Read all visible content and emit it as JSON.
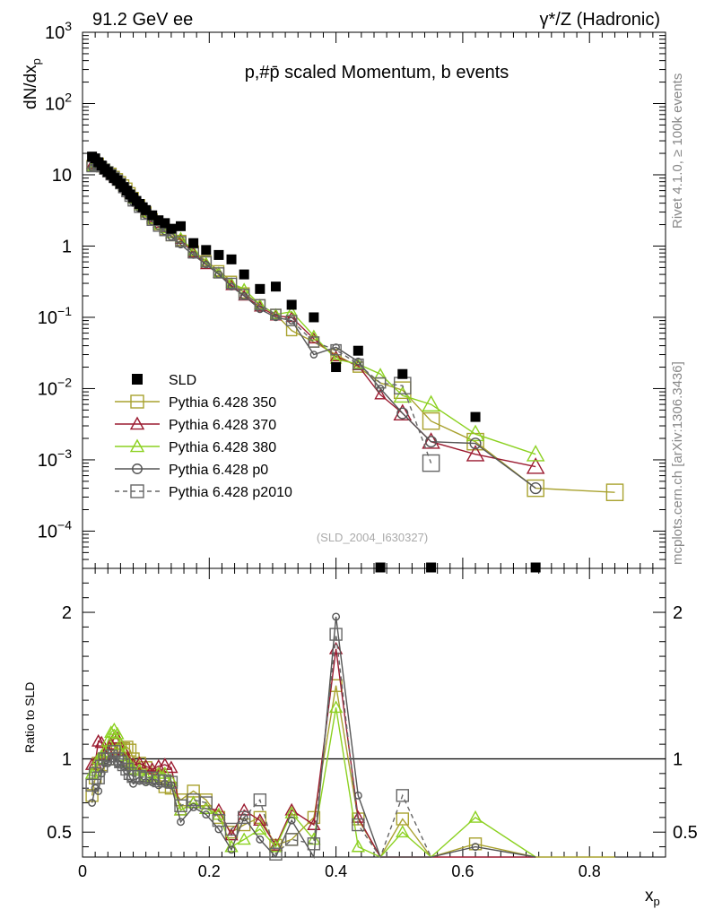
{
  "header": {
    "left": "91.2 GeV ee",
    "right": "γ*/Z (Hadronic)"
  },
  "side_text": {
    "rivet": "Rivet 4.1.0, ≥ 100k events",
    "source": "mcplots.cern.ch [arXiv:1306.3436]"
  },
  "chart_data": {
    "type": "scatter",
    "title": "p,#p̄ scaled Momentum, b events",
    "watermark": "(SLD_2004_I630327)",
    "xlabel": "x_p",
    "ylabel": "dN/dx_p",
    "ratio_ylabel": "Ratio to SLD",
    "xlim": [
      0,
      0.92
    ],
    "ylim_log": [
      3e-05,
      1000
    ],
    "ratio_ylim": [
      0.33,
      2.3
    ],
    "x_ticks": [
      "0",
      "0.2",
      "0.4",
      "0.6",
      "0.8"
    ],
    "ratio_ticks": [
      "0.5",
      "1",
      "2"
    ],
    "y_tick_labels": [
      "10^{-4}",
      "10^{-3}",
      "10^{-2}",
      "10^{-1}",
      "1",
      "10",
      "10^{2}",
      "10^{3}"
    ],
    "legend": [
      "SLD",
      "Pythia 6.428 350",
      "Pythia 6.428 370",
      "Pythia 6.428 380",
      "Pythia 6.428 p0",
      "Pythia 6.428 p2010"
    ],
    "data": {
      "name": "SLD",
      "color": "#000000",
      "x": [
        0.015,
        0.02,
        0.025,
        0.03,
        0.035,
        0.04,
        0.045,
        0.05,
        0.055,
        0.06,
        0.065,
        0.07,
        0.075,
        0.08,
        0.085,
        0.09,
        0.095,
        0.1,
        0.11,
        0.12,
        0.13,
        0.14,
        0.155,
        0.175,
        0.195,
        0.215,
        0.235,
        0.255,
        0.28,
        0.305,
        0.33,
        0.365,
        0.4,
        0.435,
        0.47,
        0.505,
        0.55,
        0.62,
        0.715
      ],
      "y": [
        18.0,
        17.0,
        15.0,
        13.5,
        12.0,
        11.0,
        10.0,
        9.0,
        8.3,
        7.5,
        6.7,
        6.0,
        5.3,
        4.8,
        4.3,
        3.9,
        3.5,
        3.2,
        2.7,
        2.3,
        2.1,
        1.75,
        1.9,
        1.1,
        0.88,
        0.75,
        0.65,
        0.4,
        0.25,
        0.27,
        0.15,
        0.1,
        0.02,
        0.034,
        0.0,
        0.016,
        0.0,
        0.004,
        0.0
      ]
    },
    "series": [
      {
        "name": "Pythia 6.428 350",
        "color": "#a9a22f",
        "marker": "square",
        "x": [
          0.015,
          0.02,
          0.025,
          0.03,
          0.035,
          0.04,
          0.045,
          0.05,
          0.055,
          0.06,
          0.065,
          0.07,
          0.075,
          0.08,
          0.09,
          0.1,
          0.11,
          0.12,
          0.13,
          0.14,
          0.155,
          0.175,
          0.195,
          0.215,
          0.235,
          0.255,
          0.28,
          0.305,
          0.33,
          0.365,
          0.4,
          0.435,
          0.47,
          0.505,
          0.55,
          0.62,
          0.715,
          0.84
        ],
        "y": [
          13.5,
          14.8,
          14.5,
          13.0,
          12.0,
          11.0,
          10.5,
          9.5,
          8.8,
          8.0,
          7.2,
          6.5,
          5.6,
          4.8,
          3.8,
          3.0,
          2.4,
          2.0,
          1.7,
          1.4,
          1.2,
          0.85,
          0.62,
          0.45,
          0.32,
          0.22,
          0.15,
          0.11,
          0.065,
          0.045,
          0.03,
          0.02,
          0.012,
          0.0095,
          0.0035,
          0.0018,
          0.0004,
          0.00035
        ],
        "ratio": [
          0.75,
          0.87,
          0.97,
          0.96,
          1.0,
          1.0,
          1.05,
          1.06,
          1.06,
          1.07,
          1.07,
          1.08,
          1.06,
          1.0,
          0.97,
          0.94,
          0.89,
          0.87,
          0.81,
          0.8,
          0.72,
          0.78,
          0.72,
          0.6,
          0.5,
          0.55,
          0.6,
          0.41,
          0.45,
          0.6,
          1.5,
          0.59,
          0.0,
          0.59,
          0.0,
          0.42,
          0.0,
          0.0
        ]
      },
      {
        "name": "Pythia 6.428 370",
        "color": "#9b1b30",
        "marker": "triangle",
        "x": [
          0.015,
          0.02,
          0.025,
          0.03,
          0.035,
          0.04,
          0.045,
          0.05,
          0.055,
          0.06,
          0.065,
          0.07,
          0.075,
          0.08,
          0.09,
          0.1,
          0.11,
          0.12,
          0.13,
          0.14,
          0.155,
          0.175,
          0.195,
          0.215,
          0.235,
          0.255,
          0.28,
          0.305,
          0.33,
          0.365,
          0.4,
          0.435,
          0.47,
          0.505,
          0.55,
          0.62,
          0.715
        ],
        "y": [
          14.0,
          15.5,
          15.0,
          13.5,
          12.5,
          11.5,
          10.5,
          9.5,
          8.8,
          8.0,
          7.0,
          6.2,
          5.5,
          4.8,
          3.9,
          3.1,
          2.5,
          2.1,
          1.8,
          1.5,
          1.25,
          0.8,
          0.55,
          0.42,
          0.28,
          0.2,
          0.14,
          0.105,
          0.1,
          0.05,
          0.028,
          0.021,
          0.0082,
          0.0045,
          0.0018,
          0.0012,
          0.0008
        ],
        "ratio": [
          0.96,
          0.97,
          1.12,
          1.11,
          1.03,
          1.05,
          1.1,
          1.14,
          1.14,
          1.1,
          1.06,
          1.0,
          0.97,
          0.96,
          0.97,
          0.95,
          0.93,
          0.95,
          0.96,
          0.94,
          0.65,
          0.7,
          0.66,
          0.65,
          0.48,
          0.65,
          0.58,
          0.41,
          0.65,
          0.55,
          1.75,
          0.6,
          0.0,
          0.0,
          0.0,
          0.0,
          0.0
        ]
      },
      {
        "name": "Pythia 6.428 380",
        "color": "#8cd121",
        "marker": "triangle",
        "x": [
          0.015,
          0.02,
          0.025,
          0.03,
          0.035,
          0.04,
          0.045,
          0.05,
          0.055,
          0.06,
          0.065,
          0.07,
          0.075,
          0.08,
          0.09,
          0.1,
          0.11,
          0.12,
          0.13,
          0.14,
          0.155,
          0.175,
          0.195,
          0.215,
          0.235,
          0.255,
          0.28,
          0.305,
          0.33,
          0.365,
          0.4,
          0.435,
          0.47,
          0.505,
          0.55,
          0.62,
          0.715
        ],
        "y": [
          13.0,
          14.5,
          15.0,
          14.0,
          13.0,
          12.0,
          11.0,
          10.0,
          9.0,
          8.0,
          7.0,
          6.0,
          5.3,
          4.6,
          3.7,
          3.0,
          2.4,
          2.0,
          1.75,
          1.5,
          1.3,
          0.85,
          0.58,
          0.42,
          0.3,
          0.25,
          0.15,
          0.11,
          0.12,
          0.055,
          0.026,
          0.022,
          0.016,
          0.008,
          0.006,
          0.0023,
          0.0012
        ],
        "ratio": [
          0.9,
          0.92,
          1.0,
          1.02,
          1.05,
          1.12,
          1.18,
          1.2,
          1.17,
          1.1,
          1.02,
          0.98,
          0.96,
          0.93,
          0.92,
          0.88,
          0.86,
          0.9,
          0.9,
          0.85,
          0.65,
          0.7,
          0.66,
          0.62,
          0.4,
          0.45,
          0.52,
          0.4,
          0.63,
          0.45,
          1.35,
          0.4,
          0.0,
          0.5,
          0.0,
          0.6,
          0.0
        ]
      },
      {
        "name": "Pythia 6.428 p0",
        "color": "#555555",
        "marker": "circle",
        "x": [
          0.015,
          0.02,
          0.025,
          0.03,
          0.035,
          0.04,
          0.045,
          0.05,
          0.055,
          0.06,
          0.065,
          0.07,
          0.075,
          0.08,
          0.09,
          0.1,
          0.11,
          0.12,
          0.13,
          0.14,
          0.155,
          0.175,
          0.195,
          0.215,
          0.235,
          0.255,
          0.28,
          0.305,
          0.33,
          0.365,
          0.4,
          0.435,
          0.47,
          0.505,
          0.55,
          0.62,
          0.715
        ],
        "y": [
          12.5,
          13.5,
          13.0,
          12.5,
          11.5,
          10.5,
          9.5,
          8.8,
          8.0,
          7.2,
          6.3,
          5.5,
          4.7,
          4.0,
          3.3,
          2.7,
          2.2,
          1.9,
          1.6,
          1.35,
          1.05,
          0.75,
          0.55,
          0.4,
          0.27,
          0.2,
          0.13,
          0.1,
          0.09,
          0.03,
          0.038,
          0.024,
          0.01,
          0.0045,
          0.0018,
          0.0017,
          0.0004
        ],
        "ratio": [
          0.7,
          0.8,
          0.78,
          0.9,
          0.97,
          0.97,
          1.0,
          1.02,
          0.97,
          0.96,
          0.95,
          0.92,
          0.87,
          0.83,
          0.85,
          0.84,
          0.84,
          0.82,
          0.83,
          0.82,
          0.57,
          0.67,
          0.62,
          0.52,
          0.38,
          0.6,
          0.45,
          0.3,
          0.58,
          0.3,
          1.97,
          0.75,
          0.0,
          0.0,
          0.0,
          0.4,
          0.0
        ]
      },
      {
        "name": "Pythia 6.428 p2010",
        "color": "#666666",
        "marker": "square",
        "dashed": true,
        "x": [
          0.015,
          0.02,
          0.025,
          0.03,
          0.035,
          0.04,
          0.045,
          0.05,
          0.055,
          0.06,
          0.065,
          0.07,
          0.075,
          0.08,
          0.09,
          0.1,
          0.11,
          0.12,
          0.13,
          0.14,
          0.155,
          0.175,
          0.195,
          0.215,
          0.235,
          0.255,
          0.28,
          0.305,
          0.33,
          0.365,
          0.4,
          0.435,
          0.47,
          0.505,
          0.55
        ],
        "y": [
          13.0,
          14.0,
          13.5,
          13.0,
          12.0,
          11.0,
          10.0,
          9.2,
          8.4,
          7.5,
          6.6,
          5.8,
          5.0,
          4.3,
          3.5,
          2.8,
          2.3,
          1.9,
          1.65,
          1.4,
          1.15,
          0.8,
          0.6,
          0.42,
          0.3,
          0.21,
          0.15,
          0.11,
          0.09,
          0.045,
          0.035,
          0.022,
          0.012,
          0.011,
          0.0009
        ],
        "ratio": [
          0.82,
          0.9,
          0.87,
          0.95,
          1.0,
          1.0,
          1.02,
          1.05,
          1.0,
          0.98,
          0.96,
          0.93,
          0.9,
          0.88,
          0.88,
          0.87,
          0.87,
          0.85,
          0.85,
          0.84,
          0.68,
          0.72,
          0.7,
          0.58,
          0.52,
          0.6,
          0.72,
          0.35,
          0.45,
          0.42,
          1.85,
          0.55,
          0.0,
          0.75,
          0.0
        ]
      }
    ]
  }
}
